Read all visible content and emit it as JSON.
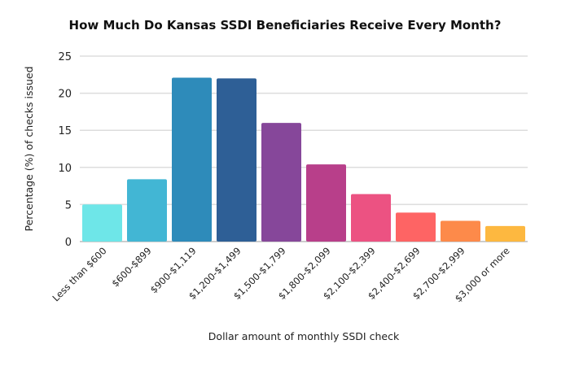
{
  "chart_data": {
    "type": "bar",
    "title": "How Much Do Kansas SSDI Beneficiaries Receive Every Month?",
    "xlabel": "Dollar amount of monthly SSDI check",
    "ylabel": "Percentage (%) of checks issued",
    "ylim": [
      0,
      25
    ],
    "yticks": [
      0,
      5,
      10,
      15,
      20,
      25
    ],
    "grid": true,
    "categories": [
      "Less than $600",
      "$600-$899",
      "$900-$1,119",
      "$1,200-$1,499",
      "$1,500-$1,799",
      "$1,800-$2,099",
      "$2,100-$2,399",
      "$2,400-$2,699",
      "$2,700-$2,999",
      "$3,000 or more"
    ],
    "values": [
      5.0,
      8.4,
      22.1,
      22.0,
      16.0,
      10.4,
      6.4,
      3.9,
      2.8,
      2.1
    ],
    "colors": [
      "#6ee6e8",
      "#42b6d4",
      "#2e8bba",
      "#2e5f96",
      "#86479a",
      "#b83f8a",
      "#ec5282",
      "#fe6464",
      "#fd8a4a",
      "#fdb840"
    ]
  }
}
